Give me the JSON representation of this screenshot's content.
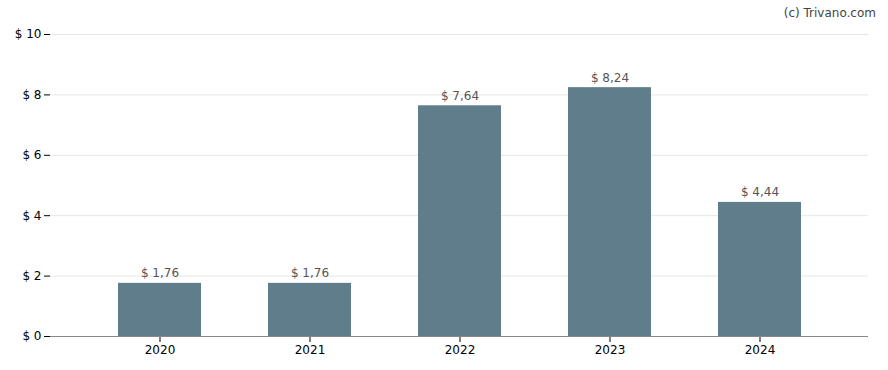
{
  "chart_data": {
    "type": "bar",
    "categories": [
      "2020",
      "2021",
      "2022",
      "2023",
      "2024"
    ],
    "values": [
      1.76,
      1.76,
      7.64,
      8.24,
      4.44
    ],
    "value_labels": [
      "$ 1,76",
      "$ 1,76",
      "$ 7,64",
      "$ 8,24",
      "$ 4,44"
    ],
    "data_labels": true,
    "color": "#607d8b",
    "ylim": [
      0,
      10
    ],
    "yticks": [
      {
        "value": 0,
        "label": "$ 0"
      },
      {
        "value": 2,
        "label": "$ 2"
      },
      {
        "value": 4,
        "label": "$ 4"
      },
      {
        "value": 6,
        "label": "$ 6"
      },
      {
        "value": 8,
        "label": "$ 8"
      },
      {
        "value": 10,
        "label": "$ 10"
      }
    ],
    "grid": true,
    "annotations": [
      "(c) Trivano.com"
    ]
  }
}
